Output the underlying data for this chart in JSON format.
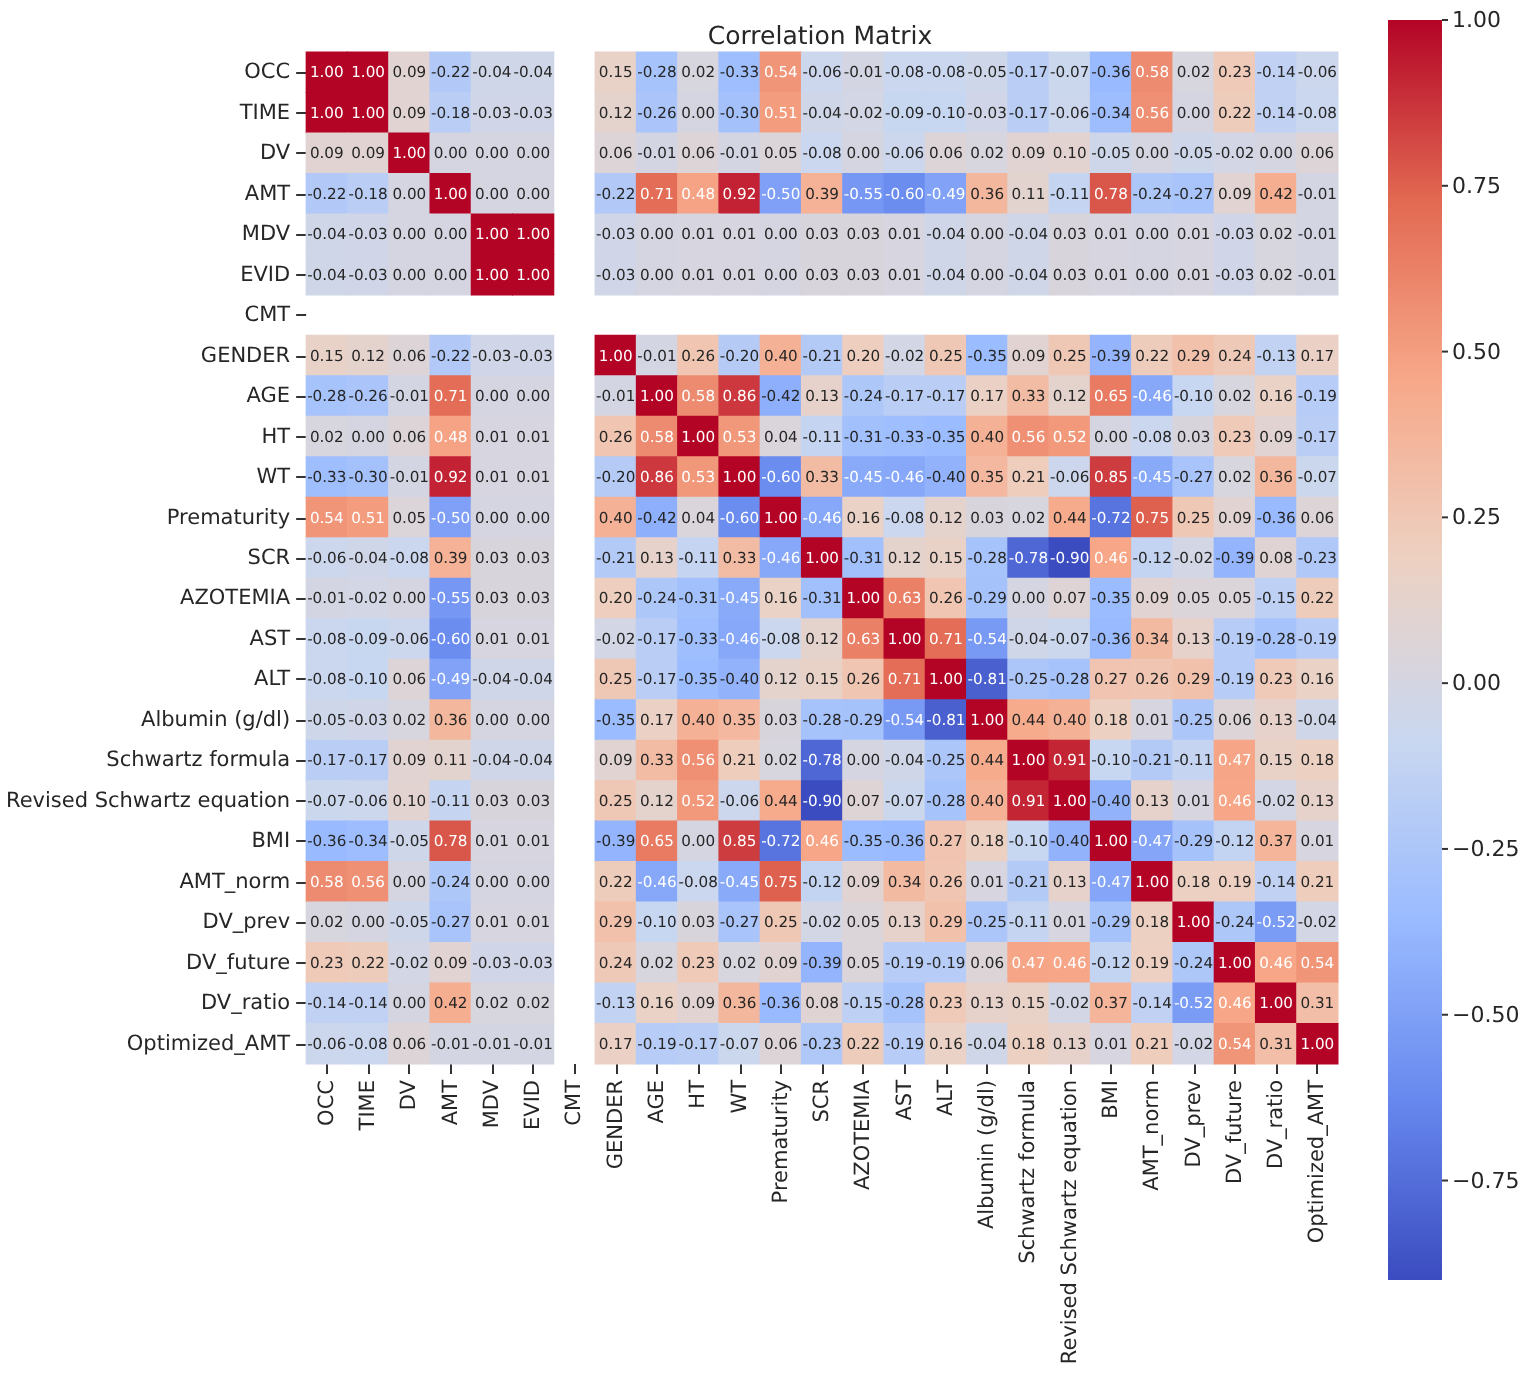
{
  "chart_data": {
    "type": "heatmap",
    "title": "Correlation Matrix",
    "categories": [
      "OCC",
      "TIME",
      "DV",
      "AMT",
      "MDV",
      "EVID",
      "CMT",
      "GENDER",
      "AGE",
      "HT",
      "WT",
      "Prematurity",
      "SCR",
      "AZOTEMIA",
      "AST",
      "ALT",
      "Albumin (g/dl)",
      "Schwartz formula",
      "Revised Schwartz equation",
      "BMI",
      "AMT_norm",
      "DV_prev",
      "DV_future",
      "DV_ratio",
      "Optimized_AMT"
    ],
    "y_categories": [
      "OCC",
      "TIME",
      "DV",
      "AMT",
      "MDV",
      "EVID",
      "CMT",
      "GENDER",
      "AGE",
      "HT",
      "WT",
      "Prematurity",
      "SCR",
      "AZOTEMIA",
      "AST",
      "ALT",
      "Albumin (g/dl)",
      "Schwartz formula",
      "Revised Schwartz equation",
      "BMI",
      "AMT_norm",
      "DV_prev",
      "DV_future",
      "DV_ratio",
      "Optimized_AMT"
    ],
    "cells": [
      [
        1.0,
        1.0,
        0.09,
        -0.22,
        -0.04,
        -0.04,
        null,
        0.15,
        -0.28,
        0.02,
        -0.33,
        0.54,
        -0.06,
        -0.01,
        -0.08,
        -0.08,
        -0.05,
        -0.17,
        -0.07,
        -0.36,
        0.58,
        0.02,
        0.23,
        -0.14,
        -0.06
      ],
      [
        1.0,
        1.0,
        0.09,
        -0.18,
        -0.03,
        -0.03,
        null,
        0.12,
        -0.26,
        0.0,
        -0.3,
        0.51,
        -0.04,
        -0.02,
        -0.09,
        -0.1,
        -0.03,
        -0.17,
        -0.06,
        -0.34,
        0.56,
        0.0,
        0.22,
        -0.14,
        -0.08
      ],
      [
        0.09,
        0.09,
        1.0,
        0.0,
        0.0,
        0.0,
        null,
        0.06,
        -0.01,
        0.06,
        -0.01,
        0.05,
        -0.08,
        0.0,
        -0.06,
        0.06,
        0.02,
        0.09,
        0.1,
        -0.05,
        0.0,
        -0.05,
        -0.02,
        0.0,
        0.06
      ],
      [
        -0.22,
        -0.18,
        0.0,
        1.0,
        0.0,
        0.0,
        null,
        -0.22,
        0.71,
        0.48,
        0.92,
        -0.5,
        0.39,
        -0.55,
        -0.6,
        -0.49,
        0.36,
        0.11,
        -0.11,
        0.78,
        -0.24,
        -0.27,
        0.09,
        0.42,
        -0.01
      ],
      [
        -0.04,
        -0.03,
        0.0,
        0.0,
        1.0,
        1.0,
        null,
        -0.03,
        0.0,
        0.01,
        0.01,
        0.0,
        0.03,
        0.03,
        0.01,
        -0.04,
        0.0,
        -0.04,
        0.03,
        0.01,
        0.0,
        0.01,
        -0.03,
        0.02,
        -0.01
      ],
      [
        -0.04,
        -0.03,
        0.0,
        0.0,
        1.0,
        1.0,
        null,
        -0.03,
        0.0,
        0.01,
        0.01,
        0.0,
        0.03,
        0.03,
        0.01,
        -0.04,
        0.0,
        -0.04,
        0.03,
        0.01,
        0.0,
        0.01,
        -0.03,
        0.02,
        -0.01
      ],
      [
        null,
        null,
        null,
        null,
        null,
        null,
        null,
        null,
        null,
        null,
        null,
        null,
        null,
        null,
        null,
        null,
        null,
        null,
        null,
        null,
        null,
        null,
        null,
        null,
        null
      ],
      [
        0.15,
        0.12,
        0.06,
        -0.22,
        -0.03,
        -0.03,
        null,
        1.0,
        -0.01,
        0.26,
        -0.2,
        0.4,
        -0.21,
        0.2,
        -0.02,
        0.25,
        -0.35,
        0.09,
        0.25,
        -0.39,
        0.22,
        0.29,
        0.24,
        -0.13,
        0.17
      ],
      [
        -0.28,
        -0.26,
        -0.01,
        0.71,
        0.0,
        0.0,
        null,
        -0.01,
        1.0,
        0.58,
        0.86,
        -0.42,
        0.13,
        -0.24,
        -0.17,
        -0.17,
        0.17,
        0.33,
        0.12,
        0.65,
        -0.46,
        -0.1,
        0.02,
        0.16,
        -0.19
      ],
      [
        0.02,
        0.0,
        0.06,
        0.48,
        0.01,
        0.01,
        null,
        0.26,
        0.58,
        1.0,
        0.53,
        0.04,
        -0.11,
        -0.31,
        -0.33,
        -0.35,
        0.4,
        0.56,
        0.52,
        0.0,
        -0.08,
        0.03,
        0.23,
        0.09,
        -0.17
      ],
      [
        -0.33,
        -0.3,
        -0.01,
        0.92,
        0.01,
        0.01,
        null,
        -0.2,
        0.86,
        0.53,
        1.0,
        -0.6,
        0.33,
        -0.45,
        -0.46,
        -0.4,
        0.35,
        0.21,
        -0.06,
        0.85,
        -0.45,
        -0.27,
        0.02,
        0.36,
        -0.07
      ],
      [
        0.54,
        0.51,
        0.05,
        -0.5,
        0.0,
        0.0,
        null,
        0.4,
        -0.42,
        0.04,
        -0.6,
        1.0,
        -0.46,
        0.16,
        -0.08,
        0.12,
        0.03,
        0.02,
        0.44,
        -0.72,
        0.75,
        0.25,
        0.09,
        -0.36,
        0.06
      ],
      [
        -0.06,
        -0.04,
        -0.08,
        0.39,
        0.03,
        0.03,
        null,
        -0.21,
        0.13,
        -0.11,
        0.33,
        -0.46,
        1.0,
        -0.31,
        0.12,
        0.15,
        -0.28,
        -0.78,
        -0.9,
        0.46,
        -0.12,
        -0.02,
        -0.39,
        0.08,
        -0.23
      ],
      [
        -0.01,
        -0.02,
        0.0,
        -0.55,
        0.03,
        0.03,
        null,
        0.2,
        -0.24,
        -0.31,
        -0.45,
        0.16,
        -0.31,
        1.0,
        0.63,
        0.26,
        -0.29,
        0.0,
        0.07,
        -0.35,
        0.09,
        0.05,
        0.05,
        -0.15,
        0.22
      ],
      [
        -0.08,
        -0.09,
        -0.06,
        -0.6,
        0.01,
        0.01,
        null,
        -0.02,
        -0.17,
        -0.33,
        -0.46,
        -0.08,
        0.12,
        0.63,
        1.0,
        0.71,
        -0.54,
        -0.04,
        -0.07,
        -0.36,
        0.34,
        0.13,
        -0.19,
        -0.28,
        -0.19
      ],
      [
        -0.08,
        -0.1,
        0.06,
        -0.49,
        -0.04,
        -0.04,
        null,
        0.25,
        -0.17,
        -0.35,
        -0.4,
        0.12,
        0.15,
        0.26,
        0.71,
        1.0,
        -0.81,
        -0.25,
        -0.28,
        0.27,
        0.26,
        0.29,
        -0.19,
        0.23,
        0.16
      ],
      [
        -0.05,
        -0.03,
        0.02,
        0.36,
        0.0,
        0.0,
        null,
        -0.35,
        0.17,
        0.4,
        0.35,
        0.03,
        -0.28,
        -0.29,
        -0.54,
        -0.81,
        1.0,
        0.44,
        0.4,
        0.18,
        0.01,
        -0.25,
        0.06,
        0.13,
        -0.04
      ],
      [
        -0.17,
        -0.17,
        0.09,
        0.11,
        -0.04,
        -0.04,
        null,
        0.09,
        0.33,
        0.56,
        0.21,
        0.02,
        -0.78,
        0.0,
        -0.04,
        -0.25,
        0.44,
        1.0,
        0.91,
        -0.1,
        -0.21,
        -0.11,
        0.47,
        0.15,
        0.18
      ],
      [
        -0.07,
        -0.06,
        0.1,
        -0.11,
        0.03,
        0.03,
        null,
        0.25,
        0.12,
        0.52,
        -0.06,
        0.44,
        -0.9,
        0.07,
        -0.07,
        -0.28,
        0.4,
        0.91,
        1.0,
        -0.4,
        0.13,
        0.01,
        0.46,
        -0.02,
        0.13
      ],
      [
        -0.36,
        -0.34,
        -0.05,
        0.78,
        0.01,
        0.01,
        null,
        -0.39,
        0.65,
        0.0,
        0.85,
        -0.72,
        0.46,
        -0.35,
        -0.36,
        0.27,
        0.18,
        -0.1,
        -0.4,
        1.0,
        -0.47,
        -0.29,
        -0.12,
        0.37,
        0.01
      ],
      [
        0.58,
        0.56,
        0.0,
        -0.24,
        0.0,
        0.0,
        null,
        0.22,
        -0.46,
        -0.08,
        -0.45,
        0.75,
        -0.12,
        0.09,
        0.34,
        0.26,
        0.01,
        -0.21,
        0.13,
        -0.47,
        1.0,
        0.18,
        0.19,
        -0.14,
        0.21
      ],
      [
        0.02,
        0.0,
        -0.05,
        -0.27,
        0.01,
        0.01,
        null,
        0.29,
        -0.1,
        0.03,
        -0.27,
        0.25,
        -0.02,
        0.05,
        0.13,
        0.29,
        -0.25,
        -0.11,
        0.01,
        -0.29,
        0.18,
        1.0,
        -0.24,
        -0.52,
        -0.02
      ],
      [
        0.23,
        0.22,
        -0.02,
        0.09,
        -0.03,
        -0.03,
        null,
        0.24,
        0.02,
        0.23,
        0.02,
        0.09,
        -0.39,
        0.05,
        -0.19,
        -0.19,
        0.06,
        0.47,
        0.46,
        -0.12,
        0.19,
        -0.24,
        1.0,
        0.46,
        0.54
      ],
      [
        -0.14,
        -0.14,
        0.0,
        0.42,
        0.02,
        0.02,
        null,
        -0.13,
        0.16,
        0.09,
        0.36,
        -0.36,
        0.08,
        -0.15,
        -0.28,
        0.23,
        0.13,
        0.15,
        -0.02,
        0.37,
        -0.14,
        -0.52,
        0.46,
        1.0,
        0.31
      ],
      [
        -0.06,
        -0.08,
        0.06,
        -0.01,
        -0.01,
        -0.01,
        null,
        0.17,
        -0.19,
        -0.17,
        -0.07,
        0.06,
        -0.23,
        0.22,
        -0.19,
        0.16,
        -0.04,
        0.18,
        0.13,
        0.01,
        0.21,
        -0.02,
        0.54,
        0.31,
        1.0
      ]
    ],
    "cell_labels": [
      [
        "1.00",
        "1.00",
        "0.09",
        "-0.22",
        "-0.04",
        "-0.04",
        null,
        "0.15",
        "-0.28",
        "0.02",
        "-0.33",
        "0.54",
        "-0.06",
        "-0.01",
        "-0.08",
        "-0.08",
        "-0.05",
        "-0.17",
        "-0.07",
        "-0.36",
        "0.58",
        "0.02",
        "0.23",
        "-0.14",
        "-0.06"
      ],
      [
        "1.00",
        "1.00",
        "0.09",
        "-0.18",
        "-0.03",
        "-0.03",
        null,
        "0.12",
        "-0.26",
        "0.00",
        "-0.30",
        "0.51",
        "-0.04",
        "-0.02",
        "-0.09",
        "-0.10",
        "-0.03",
        "-0.17",
        "-0.06",
        "-0.34",
        "0.56",
        "0.00",
        "0.22",
        "-0.14",
        "-0.08"
      ],
      [
        "0.09",
        "0.09",
        "1.00",
        "0.00",
        "0.00",
        "0.00",
        null,
        "0.06",
        "-0.01",
        "0.06",
        "-0.01",
        "0.05",
        "-0.08",
        "0.00",
        "-0.06",
        "0.06",
        "0.02",
        "0.09",
        "0.10",
        "-0.05",
        "0.00",
        "-0.05",
        "-0.02",
        "0.00",
        "0.06"
      ],
      [
        "-0.22",
        "-0.18",
        "0.00",
        "1.00",
        "0.00",
        "0.00",
        null,
        "-0.22",
        "0.71",
        "0.48",
        "0.92",
        "-0.50",
        "0.39",
        "-0.55",
        "-0.60",
        "-0.49",
        "0.36",
        "0.11",
        "-0.11",
        "0.78",
        "-0.24",
        "-0.27",
        "0.09",
        "0.42",
        "-0.01"
      ],
      [
        "-0.04",
        "-0.03",
        "0.00",
        "0.00",
        "1.00",
        "1.00",
        null,
        "-0.03",
        "0.00",
        "0.01",
        "0.01",
        "0.00",
        "0.03",
        "0.03",
        "0.01",
        "-0.04",
        "0.00",
        "-0.04",
        "0.03",
        "0.01",
        "0.00",
        "0.01",
        "-0.03",
        "0.02",
        "-0.01"
      ],
      [
        "-0.04",
        "-0.03",
        "0.00",
        "0.00",
        "1.00",
        "1.00",
        null,
        "-0.03",
        "0.00",
        "0.01",
        "0.01",
        "0.00",
        "0.03",
        "0.03",
        "0.01",
        "-0.04",
        "0.00",
        "-0.04",
        "0.03",
        "0.01",
        "0.00",
        "0.01",
        "-0.03",
        "0.02",
        "-0.01"
      ],
      [
        null,
        null,
        null,
        null,
        null,
        null,
        null,
        null,
        null,
        null,
        null,
        null,
        null,
        null,
        null,
        null,
        null,
        null,
        null,
        null,
        null,
        null,
        null,
        null,
        null
      ],
      [
        "0.15",
        "0.12",
        "0.06",
        "-0.22",
        "-0.03",
        "-0.03",
        null,
        "1.00",
        "-0.01",
        "0.26",
        "-0.20",
        "0.40",
        "-0.21",
        "0.20",
        "-0.02",
        "0.25",
        "-0.35",
        "0.09",
        "0.25",
        "-0.39",
        "0.22",
        "0.29",
        "0.24",
        "-0.13",
        "0.17"
      ],
      [
        "-0.28",
        "-0.26",
        "-0.01",
        "0.71",
        "0.00",
        "0.00",
        null,
        "-0.01",
        "1.00",
        "0.58",
        "0.86",
        "-0.42",
        "0.13",
        "-0.24",
        "-0.17",
        "-0.17",
        "0.17",
        "0.33",
        "0.12",
        "0.65",
        "-0.46",
        "-0.10",
        "0.02",
        "0.16",
        "-0.19"
      ],
      [
        "0.02",
        "0.00",
        "0.06",
        "0.48",
        "0.01",
        "0.01",
        null,
        "0.26",
        "0.58",
        "1.00",
        "0.53",
        "0.04",
        "-0.11",
        "-0.31",
        "-0.33",
        "-0.35",
        "0.40",
        "0.56",
        "0.52",
        "0.00",
        "-0.08",
        "0.03",
        "0.23",
        "0.09",
        "-0.17"
      ],
      [
        "-0.33",
        "-0.30",
        "-0.01",
        "0.92",
        "0.01",
        "0.01",
        null,
        "-0.20",
        "0.86",
        "0.53",
        "1.00",
        "-0.60",
        "0.33",
        "-0.45",
        "-0.46",
        "-0.40",
        "0.35",
        "0.21",
        "-0.06",
        "0.85",
        "-0.45",
        "-0.27",
        "0.02",
        "0.36",
        "-0.07"
      ],
      [
        "0.54",
        "0.51",
        "0.05",
        "-0.50",
        "0.00",
        "0.00",
        null,
        "0.40",
        "-0.42",
        "0.04",
        "-0.60",
        "1.00",
        "-0.46",
        "0.16",
        "-0.08",
        "0.12",
        "0.03",
        "0.02",
        "0.44",
        "-0.72",
        "0.75",
        "0.25",
        "0.09",
        "-0.36",
        "0.06"
      ],
      [
        "-0.06",
        "-0.04",
        "-0.08",
        "0.39",
        "0.03",
        "0.03",
        null,
        "-0.21",
        "0.13",
        "-0.11",
        "0.33",
        "-0.46",
        "1.00",
        "-0.31",
        "0.12",
        "0.15",
        "-0.28",
        "-0.78",
        "-0.90",
        "0.46",
        "-0.12",
        "-0.02",
        "-0.39",
        "0.08",
        "-0.23"
      ],
      [
        "-0.01",
        "-0.02",
        "0.00",
        "-0.55",
        "0.03",
        "0.03",
        null,
        "0.20",
        "-0.24",
        "-0.31",
        "-0.45",
        "0.16",
        "-0.31",
        "1.00",
        "0.63",
        "0.26",
        "-0.29",
        "0.00",
        "0.07",
        "-0.35",
        "0.09",
        "0.05",
        "0.05",
        "-0.15",
        "0.22"
      ],
      [
        "-0.08",
        "-0.09",
        "-0.06",
        "-0.60",
        "0.01",
        "0.01",
        null,
        "-0.02",
        "-0.17",
        "-0.33",
        "-0.46",
        "-0.08",
        "0.12",
        "0.63",
        "1.00",
        "0.71",
        "-0.54",
        "-0.04",
        "-0.07",
        "-0.36",
        "0.34",
        "0.13",
        "-0.19",
        "-0.28",
        "-0.19"
      ],
      [
        "-0.08",
        "-0.10",
        "0.06",
        "-0.49",
        "-0.04",
        "-0.04",
        null,
        "0.25",
        "-0.17",
        "-0.35",
        "-0.40",
        "0.12",
        "0.15",
        "0.26",
        "0.71",
        "1.00",
        "-0.81",
        "-0.25",
        "-0.28",
        "0.27",
        "0.26",
        "0.29",
        "-0.19",
        "0.23",
        "0.16"
      ],
      [
        "-0.05",
        "-0.03",
        "0.02",
        "0.36",
        "0.00",
        "0.00",
        null,
        "-0.35",
        "0.17",
        "0.40",
        "0.35",
        "0.03",
        "-0.28",
        "-0.29",
        "-0.54",
        "-0.81",
        "1.00",
        "0.44",
        "0.40",
        "0.18",
        "0.01",
        "-0.25",
        "0.06",
        "0.13",
        "-0.04"
      ],
      [
        "-0.17",
        "-0.17",
        "0.09",
        "0.11",
        "-0.04",
        "-0.04",
        null,
        "0.09",
        "0.33",
        "0.56",
        "0.21",
        "0.02",
        "-0.78",
        "0.00",
        "-0.04",
        "-0.25",
        "0.44",
        "1.00",
        "0.91",
        "-0.10",
        "-0.21",
        "-0.11",
        "0.47",
        "0.15",
        "0.18"
      ],
      [
        "-0.07",
        "-0.06",
        "0.10",
        "-0.11",
        "0.03",
        "0.03",
        null,
        "0.25",
        "0.12",
        "0.52",
        "-0.06",
        "0.44",
        "-0.90",
        "0.07",
        "-0.07",
        "-0.28",
        "0.40",
        "0.91",
        "1.00",
        "-0.40",
        "0.13",
        "0.01",
        "0.46",
        "-0.02",
        "0.13"
      ],
      [
        "-0.36",
        "-0.34",
        "-0.05",
        "0.78",
        "0.01",
        "0.01",
        null,
        "-0.39",
        "0.65",
        "0.00",
        "0.85",
        "-0.72",
        "0.46",
        "-0.35",
        "-0.36",
        "0.27",
        "0.18",
        "-0.10",
        "-0.40",
        "1.00",
        "-0.47",
        "-0.29",
        "-0.12",
        "0.37",
        "0.01"
      ],
      [
        "0.58",
        "0.56",
        "0.00",
        "-0.24",
        "0.00",
        "0.00",
        null,
        "0.22",
        "-0.46",
        "-0.08",
        "-0.45",
        "0.75",
        "-0.12",
        "0.09",
        "0.34",
        "0.26",
        "0.01",
        "-0.21",
        "0.13",
        "-0.47",
        "1.00",
        "0.18",
        "0.19",
        "-0.14",
        "0.21"
      ],
      [
        "0.02",
        "0.00",
        "-0.05",
        "-0.27",
        "0.01",
        "0.01",
        null,
        "0.29",
        "-0.10",
        "0.03",
        "-0.27",
        "0.25",
        "-0.02",
        "0.05",
        "0.13",
        "0.29",
        "-0.25",
        "-0.11",
        "0.01",
        "-0.29",
        "0.18",
        "1.00",
        "-0.24",
        "-0.52",
        "-0.02"
      ],
      [
        "0.23",
        "0.22",
        "-0.02",
        "0.09",
        "-0.03",
        "-0.03",
        null,
        "0.24",
        "0.02",
        "0.23",
        "0.02",
        "0.09",
        "-0.39",
        "0.05",
        "-0.19",
        "-0.19",
        "0.06",
        "0.47",
        "0.46",
        "-0.12",
        "0.19",
        "-0.24",
        "1.00",
        "0.46",
        "0.54"
      ],
      [
        "-0.14",
        "-0.14",
        "0.00",
        "0.42",
        "0.02",
        "0.02",
        null,
        "-0.13",
        "0.16",
        "0.09",
        "0.36",
        "-0.36",
        "0.08",
        "-0.15",
        "-0.28",
        "0.23",
        "0.13",
        "0.15",
        "-0.02",
        "0.37",
        "-0.14",
        "-0.52",
        "0.46",
        "1.00",
        "0.31"
      ],
      [
        "-0.06",
        "-0.08",
        "0.06",
        "-0.01",
        "-0.01",
        "-0.01",
        null,
        "0.17",
        "-0.19",
        "-0.17",
        "-0.07",
        "0.06",
        "-0.23",
        "0.22",
        "-0.19",
        "0.16",
        "-0.04",
        "0.18",
        "0.13",
        "0.01",
        "0.21",
        "-0.02",
        "0.54",
        "0.31",
        "1.00"
      ]
    ],
    "clim": [
      -0.9,
      1.0
    ],
    "cticks": [
      {
        "value": -0.75,
        "label": "−0.75"
      },
      {
        "value": -0.5,
        "label": "−0.50"
      },
      {
        "value": -0.25,
        "label": "−0.25"
      },
      {
        "value": 0,
        "label": "0.00"
      },
      {
        "value": 0.25,
        "label": "0.25"
      },
      {
        "value": 0.5,
        "label": "0.50"
      },
      {
        "value": 0.75,
        "label": "0.75"
      },
      {
        "value": 1.0,
        "label": "1.00"
      }
    ],
    "data_labels": true
  }
}
